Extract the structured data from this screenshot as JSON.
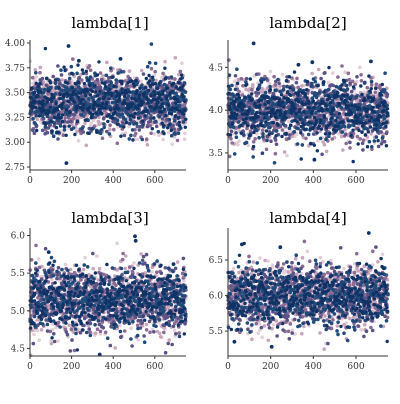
{
  "palette": [
    "#e3cfd9",
    "#c7a6bb",
    "#8b6c95",
    "#5a5486",
    "#1f4a7a",
    "#0f3366"
  ],
  "chart_data": [
    {
      "type": "scatter",
      "title": "lambda[1]",
      "xlim": [
        0,
        750
      ],
      "ylim": [
        2.72,
        4.03
      ],
      "xticks": [
        0,
        200,
        400,
        600
      ],
      "yticks": [
        2.75,
        3.0,
        3.25,
        3.5,
        3.75,
        4.0
      ],
      "ytick_labels": [
        "2.75",
        "3.00",
        "3.25",
        "3.50",
        "3.75",
        "4.00"
      ],
      "center": 3.4,
      "sd": 0.15,
      "draws": 750,
      "chains": 4,
      "outliers": [
        [
          130,
          3.1
        ],
        [
          175,
          2.79
        ],
        [
          185,
          3.97
        ],
        [
          235,
          3.82
        ],
        [
          435,
          3.84
        ],
        [
          715,
          3.6
        ]
      ]
    },
    {
      "type": "scatter",
      "title": "lambda[2]",
      "xlim": [
        0,
        750
      ],
      "ylim": [
        3.3,
        4.82
      ],
      "xticks": [
        0,
        200,
        400,
        600
      ],
      "yticks": [
        3.5,
        4.0,
        4.5
      ],
      "ytick_labels": [
        "3.5",
        "4.0",
        "4.5"
      ],
      "center": 4.0,
      "sd": 0.18,
      "draws": 750,
      "chains": 4,
      "outliers": [
        [
          120,
          4.78
        ],
        [
          330,
          4.53
        ],
        [
          395,
          4.56
        ],
        [
          670,
          4.57
        ],
        [
          405,
          3.42
        ]
      ]
    },
    {
      "type": "scatter",
      "title": "lambda[3]",
      "xlim": [
        0,
        750
      ],
      "ylim": [
        4.4,
        6.1
      ],
      "xticks": [
        0,
        200,
        400,
        600
      ],
      "yticks": [
        4.5,
        5.0,
        5.5,
        6.0
      ],
      "ytick_labels": [
        "4.5",
        "5.0",
        "5.5",
        "6.0"
      ],
      "center": 5.15,
      "sd": 0.22,
      "draws": 750,
      "chains": 4,
      "outliers": [
        [
          335,
          4.42
        ],
        [
          505,
          5.99
        ],
        [
          508,
          5.93
        ],
        [
          90,
          5.78
        ],
        [
          690,
          5.62
        ]
      ]
    },
    {
      "type": "scatter",
      "title": "lambda[4]",
      "xlim": [
        0,
        750
      ],
      "ylim": [
        5.15,
        6.95
      ],
      "xticks": [
        0,
        200,
        400,
        600
      ],
      "yticks": [
        5.5,
        6.0,
        6.5
      ],
      "ytick_labels": [
        "5.5",
        "6.0",
        "6.5"
      ],
      "center": 6.0,
      "sd": 0.22,
      "draws": 750,
      "chains": 4,
      "outliers": [
        [
          65,
          6.72
        ],
        [
          245,
          6.68
        ],
        [
          660,
          6.88
        ],
        [
          30,
          5.35
        ],
        [
          205,
          5.28
        ]
      ]
    }
  ]
}
